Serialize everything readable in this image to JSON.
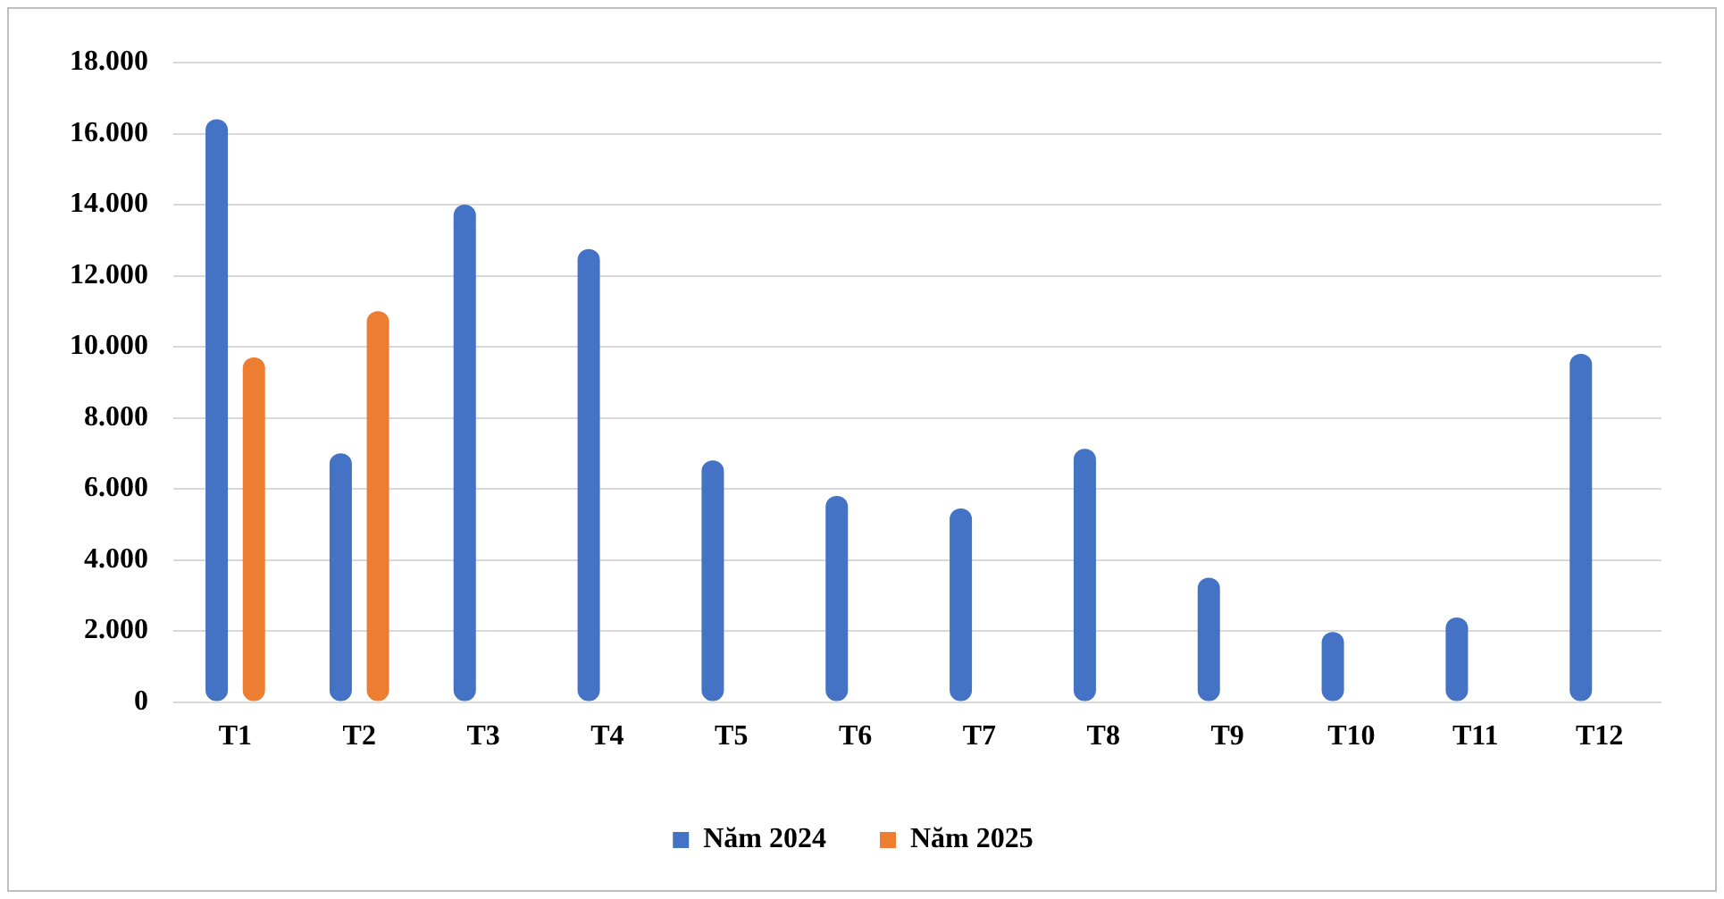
{
  "chart_data": {
    "type": "bar",
    "categories": [
      "T1",
      "T2",
      "T3",
      "T4",
      "T5",
      "T6",
      "T7",
      "T8",
      "T9",
      "T10",
      "T11",
      "T12"
    ],
    "series": [
      {
        "name": "Năm 2024",
        "color": "#4472c4",
        "values": [
          16400,
          7000,
          14000,
          12750,
          6800,
          5800,
          5450,
          7130,
          3500,
          1970,
          2380,
          9800
        ]
      },
      {
        "name": "Năm 2025",
        "color": "#ed7d31",
        "values": [
          9700,
          11000,
          null,
          null,
          null,
          null,
          null,
          null,
          null,
          null,
          null,
          null
        ]
      }
    ],
    "ylim": [
      0,
      18000
    ],
    "yticks": [
      {
        "value": 0,
        "label": "0"
      },
      {
        "value": 2000,
        "label": "2.000"
      },
      {
        "value": 4000,
        "label": "4.000"
      },
      {
        "value": 6000,
        "label": "6.000"
      },
      {
        "value": 8000,
        "label": "8.000"
      },
      {
        "value": 10000,
        "label": "10.000"
      },
      {
        "value": 12000,
        "label": "12.000"
      },
      {
        "value": 14000,
        "label": "14.000"
      },
      {
        "value": 16000,
        "label": "16.000"
      },
      {
        "value": 18000,
        "label": "18.000"
      }
    ],
    "grid": "y",
    "legend": "bottom"
  }
}
